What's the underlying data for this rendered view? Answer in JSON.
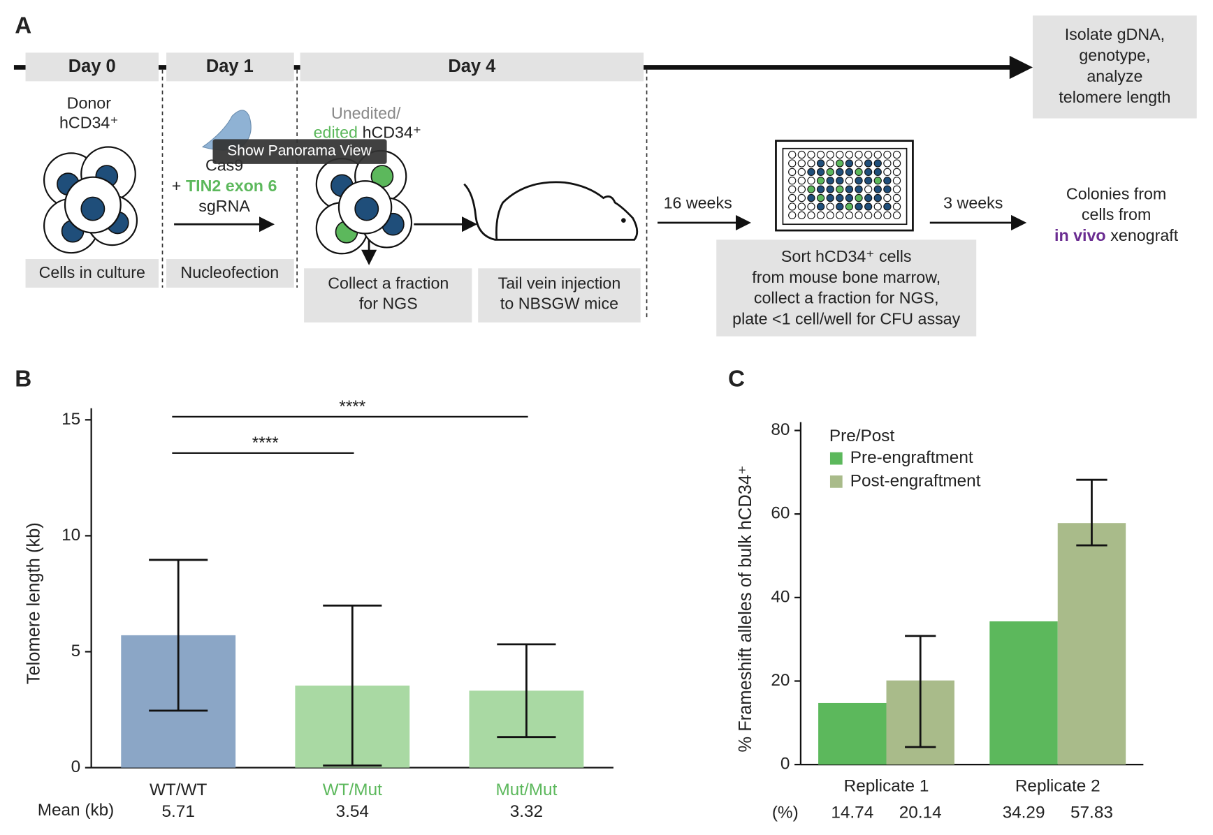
{
  "panel_a": {
    "label": "A",
    "days": [
      "Day 0",
      "Day 1",
      "Day 4"
    ],
    "donor": [
      "Donor",
      "hCD34⁺"
    ],
    "cells_box": "Cells in culture",
    "reagents": {
      "cas9": "Cas9",
      "plus": "+",
      "guide": "TIN2 exon 6",
      "sgrna": "sgRNA"
    },
    "nucleofection_box": "Nucleofection",
    "edited_cells": {
      "unedited": "Unedited/",
      "edited": "edited",
      "cell": "hCD34⁺"
    },
    "ngs_box": [
      "Collect a fraction",
      "for NGS"
    ],
    "injection_box": [
      "Tail vein injection",
      "to NBSGW mice"
    ],
    "final_box": [
      "Isolate gDNA,",
      "genotype,",
      "analyze",
      "telomere length"
    ],
    "wait_1": "16 weeks",
    "sort_box": [
      "Sort hCD34⁺ cells",
      "from mouse bone marrow,",
      "collect a fraction for NGS,",
      "plate <1 cell/well for CFU assay"
    ],
    "wait_2": "3 weeks",
    "colonies": {
      "lines": [
        "Colonies from",
        "cells from"
      ],
      "highlight": "in vivo",
      "rest": "xenograft"
    }
  },
  "tooltip": "Show Panorama View",
  "chart_data": [
    {
      "type": "bar",
      "panel_label": "B",
      "ylabel": "Telomere length (kb)",
      "categories": [
        "WT/WT",
        "WT/Mut",
        "Mut/Mut"
      ],
      "category_colors": [
        "#222222",
        "#5cb85c",
        "#5cb85c"
      ],
      "values": [
        5.71,
        3.54,
        3.32
      ],
      "errors": [
        3.25,
        3.45,
        2.0
      ],
      "colors": [
        "#8ba6c6",
        "#a9d9a3",
        "#a9d9a3"
      ],
      "value_row_label": "Mean (kb)",
      "ylim": [
        0,
        15.5
      ],
      "yticks": [
        0,
        5,
        10,
        15
      ],
      "brackets": [
        {
          "label": "****",
          "from": "WT/WT",
          "to": "WT/Mut"
        },
        {
          "label": "****",
          "from": "WT/WT",
          "to": "Mut/Mut"
        }
      ]
    },
    {
      "type": "grouped_bar",
      "panel_label": "C",
      "ylabel": "% Frameshift alleles of bulk hCD34⁺",
      "categories": [
        "Replicate 1",
        "Replicate 2"
      ],
      "series": [
        {
          "name": "Pre-engraftment",
          "color": "#5cb85c",
          "values": [
            14.74,
            34.29
          ]
        },
        {
          "name": "Post-engraftment",
          "color": "#a9bb8a",
          "values": [
            20.14,
            57.83
          ],
          "error_bars": [
            [
              4.2,
              30.8
            ],
            [
              52.5,
              68.2
            ]
          ]
        }
      ],
      "legend_title": "Pre/Post",
      "legend": "top-left",
      "value_row_label": "(%)",
      "ylim": [
        0,
        82
      ],
      "yticks": [
        0,
        20,
        40,
        60,
        80
      ]
    }
  ]
}
